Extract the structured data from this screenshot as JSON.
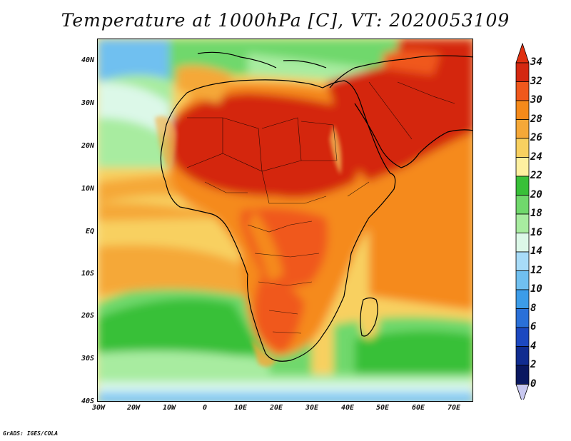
{
  "title": "Temperature at 1000hPa [C], VT: 2020053109",
  "footer": "GrADS: IGES/COLA",
  "map": {
    "lat_labels": [
      "40N",
      "30N",
      "20N",
      "10N",
      "EQ",
      "10S",
      "20S",
      "30S",
      "40S"
    ],
    "lon_labels": [
      "30W",
      "20W",
      "10W",
      "0",
      "10E",
      "20E",
      "30E",
      "40E",
      "50E",
      "60E",
      "70E"
    ]
  },
  "colorbar": {
    "levels": [
      "34",
      "32",
      "30",
      "28",
      "26",
      "24",
      "22",
      "20",
      "18",
      "16",
      "14",
      "12",
      "10",
      "8",
      "6",
      "4",
      "2",
      "0"
    ],
    "colors": {
      "above34": "#e03010",
      "32_34": "#d42810",
      "30_32": "#f0581c",
      "28_30": "#f58a1a",
      "26_28": "#f5a838",
      "24_26": "#f8d060",
      "22_24": "#fdf0a0",
      "20_22": "#38c038",
      "18_20": "#70d86c",
      "16_18": "#a8eca0",
      "14_16": "#dcf8e8",
      "12_14": "#a8dcf8",
      "10_12": "#70c0f0",
      "8_10": "#3c9ce8",
      "6_8": "#2a70d8",
      "4_6": "#1c48c0",
      "2_4": "#102c90",
      "0_2": "#0a1860",
      "below0": "#c8c8f0"
    }
  }
}
